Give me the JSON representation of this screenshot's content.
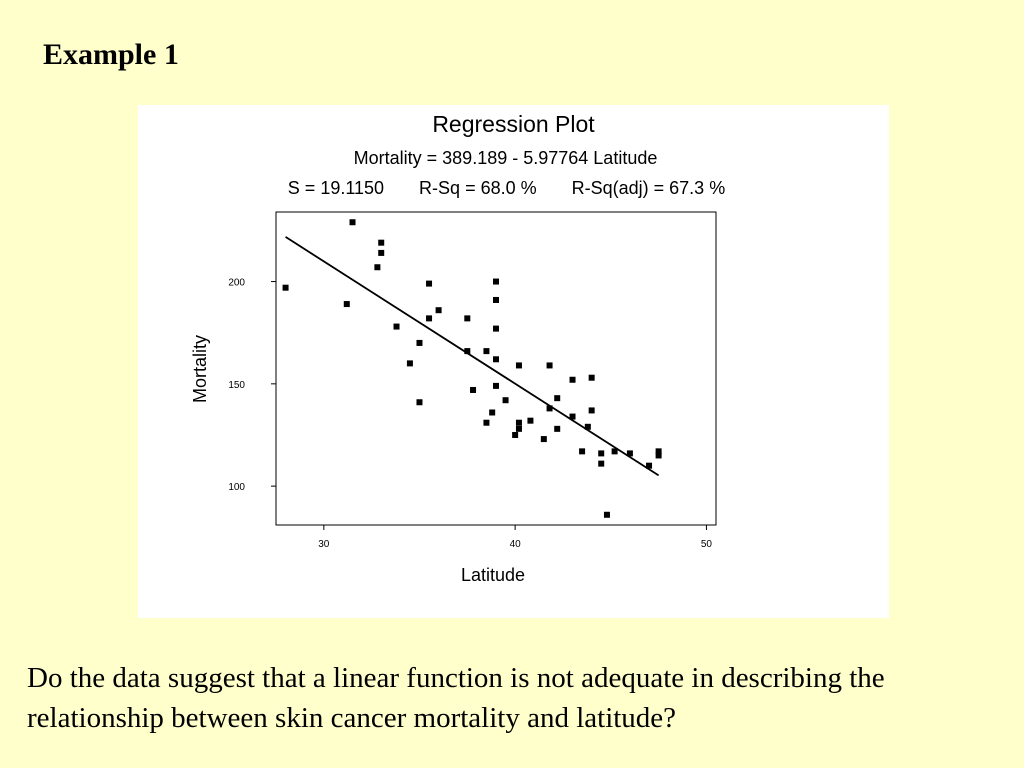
{
  "slide": {
    "title": "Example 1",
    "question": "Do the data suggest that a linear function is not adequate in describing the relationship between skin cancer mortality and latitude?",
    "background_color": "#ffffcc"
  },
  "chart_data": {
    "type": "scatter",
    "title": "Regression Plot",
    "equation": "Mortality = 389.189 - 5.97764 Latitude",
    "stats": "S = 19.1150       R-Sq = 68.0 %       R-Sq(adj) = 67.3 %",
    "xlabel": "Latitude",
    "ylabel": "Mortality",
    "xlim": [
      27.5,
      50.5
    ],
    "ylim": [
      81,
      234
    ],
    "x_ticks": [
      "30",
      "40",
      "50"
    ],
    "y_ticks": [
      "100",
      "150",
      "200"
    ],
    "x_tick_values": [
      30,
      40,
      50
    ],
    "y_tick_values": [
      100,
      150,
      200
    ],
    "fit_line": {
      "intercept": 389.189,
      "slope": -5.97764,
      "x_range": [
        28.0,
        47.5
      ]
    },
    "points": [
      {
        "x": 28.0,
        "y": 197
      },
      {
        "x": 31.2,
        "y": 189
      },
      {
        "x": 31.5,
        "y": 229
      },
      {
        "x": 32.8,
        "y": 207
      },
      {
        "x": 33.0,
        "y": 219
      },
      {
        "x": 33.0,
        "y": 214
      },
      {
        "x": 33.8,
        "y": 178
      },
      {
        "x": 34.5,
        "y": 160
      },
      {
        "x": 35.0,
        "y": 170
      },
      {
        "x": 35.0,
        "y": 141
      },
      {
        "x": 35.5,
        "y": 199
      },
      {
        "x": 35.5,
        "y": 182
      },
      {
        "x": 36.0,
        "y": 186
      },
      {
        "x": 37.5,
        "y": 182
      },
      {
        "x": 37.5,
        "y": 166
      },
      {
        "x": 37.8,
        "y": 147
      },
      {
        "x": 38.5,
        "y": 166
      },
      {
        "x": 38.5,
        "y": 131
      },
      {
        "x": 38.8,
        "y": 136
      },
      {
        "x": 39.0,
        "y": 200
      },
      {
        "x": 39.0,
        "y": 191
      },
      {
        "x": 39.0,
        "y": 177
      },
      {
        "x": 39.0,
        "y": 162
      },
      {
        "x": 39.0,
        "y": 149
      },
      {
        "x": 39.5,
        "y": 142
      },
      {
        "x": 40.0,
        "y": 125
      },
      {
        "x": 40.2,
        "y": 159
      },
      {
        "x": 40.2,
        "y": 131
      },
      {
        "x": 40.2,
        "y": 128
      },
      {
        "x": 40.8,
        "y": 132
      },
      {
        "x": 41.5,
        "y": 123
      },
      {
        "x": 41.8,
        "y": 159
      },
      {
        "x": 41.8,
        "y": 138
      },
      {
        "x": 42.2,
        "y": 143
      },
      {
        "x": 42.2,
        "y": 128
      },
      {
        "x": 43.0,
        "y": 152
      },
      {
        "x": 43.0,
        "y": 134
      },
      {
        "x": 43.5,
        "y": 117
      },
      {
        "x": 43.8,
        "y": 129
      },
      {
        "x": 44.0,
        "y": 153
      },
      {
        "x": 44.0,
        "y": 137
      },
      {
        "x": 44.5,
        "y": 116
      },
      {
        "x": 44.5,
        "y": 111
      },
      {
        "x": 44.8,
        "y": 86
      },
      {
        "x": 45.2,
        "y": 117
      },
      {
        "x": 46.0,
        "y": 116
      },
      {
        "x": 47.0,
        "y": 110
      },
      {
        "x": 47.5,
        "y": 117
      },
      {
        "x": 47.5,
        "y": 115
      }
    ]
  }
}
